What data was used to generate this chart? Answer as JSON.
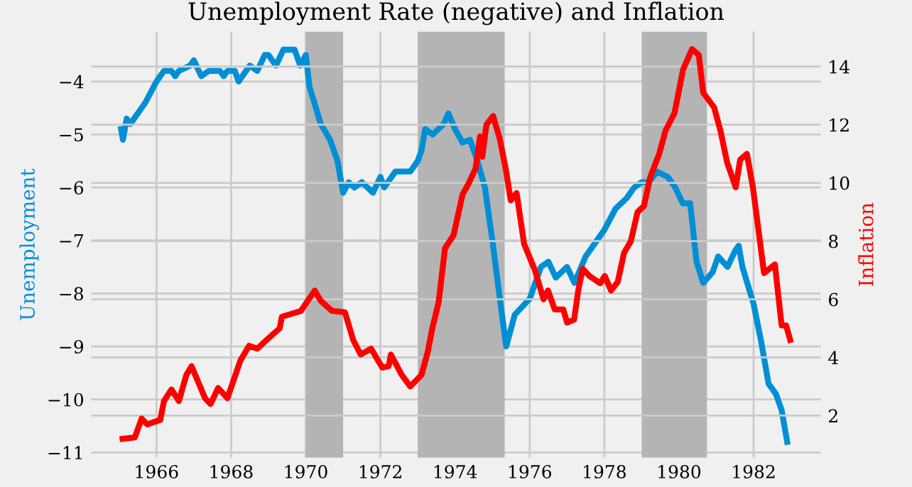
{
  "chart_data": {
    "type": "line",
    "title": "Unemployment Rate (negative) and Inflation",
    "ylabel": "Unemployment",
    "y2label": "Inflation",
    "xlim": [
      1964.25,
      1983.8
    ],
    "xticks": [
      1966,
      1968,
      1970,
      1972,
      1974,
      1976,
      1978,
      1980,
      1982
    ],
    "ylim": [
      -11.1,
      -3.06
    ],
    "yticks": [
      -11,
      -10,
      -9,
      -8,
      -7,
      -6,
      -5,
      -4
    ],
    "y2lim": [
      0.55,
      15.2
    ],
    "y2ticks": [
      2,
      4,
      6,
      8,
      10,
      12,
      14
    ],
    "grid": true,
    "bands": [
      {
        "axis": "x",
        "from": 1970.0,
        "to": 1971.0,
        "color": "#b4b4b4"
      },
      {
        "axis": "x",
        "from": 1973.0,
        "to": 1975.33,
        "color": "#b4b4b4"
      },
      {
        "axis": "x",
        "from": 1979.0,
        "to": 1980.75,
        "color": "#b4b4b4"
      }
    ],
    "series": [
      {
        "color": "#008fd5",
        "x": [
          1965.05,
          1965.1,
          1965.2,
          1965.3,
          1965.5,
          1965.7,
          1966.0,
          1966.2,
          1966.4,
          1966.5,
          1966.6,
          1966.9,
          1967.0,
          1967.2,
          1967.4,
          1967.7,
          1967.8,
          1967.9,
          1968.1,
          1968.2,
          1968.5,
          1968.7,
          1968.9,
          1969.0,
          1969.2,
          1969.4,
          1969.7,
          1969.85,
          1970.0,
          1970.1,
          1970.4,
          1970.65,
          1970.85,
          1971.0,
          1971.15,
          1971.3,
          1971.5,
          1971.8,
          1972.0,
          1972.1,
          1972.4,
          1972.8,
          1973.0,
          1973.1,
          1973.2,
          1973.4,
          1973.7,
          1973.82,
          1974.0,
          1974.2,
          1974.4,
          1974.6,
          1974.8,
          1975.0,
          1975.2,
          1975.37,
          1975.6,
          1976.0,
          1976.3,
          1976.5,
          1976.7,
          1977.0,
          1977.2,
          1977.5,
          1977.8,
          1978.0,
          1978.3,
          1978.6,
          1978.8,
          1979.0,
          1979.2,
          1979.41,
          1979.7,
          1979.9,
          1980.1,
          1980.3,
          1980.47,
          1980.65,
          1980.9,
          1981.05,
          1981.3,
          1981.5,
          1981.6,
          1981.7,
          1982.0,
          1982.2,
          1982.4,
          1982.6,
          1982.75,
          1982.9
        ],
        "values": [
          -4.9,
          -5.1,
          -4.7,
          -4.8,
          -4.6,
          -4.4,
          -4.0,
          -3.8,
          -3.8,
          -3.9,
          -3.8,
          -3.7,
          -3.6,
          -3.9,
          -3.8,
          -3.8,
          -3.9,
          -3.8,
          -3.8,
          -4.0,
          -3.7,
          -3.8,
          -3.5,
          -3.5,
          -3.7,
          -3.4,
          -3.4,
          -3.7,
          -3.5,
          -4.1,
          -4.8,
          -5.1,
          -5.5,
          -6.1,
          -5.9,
          -6.0,
          -5.9,
          -6.1,
          -5.8,
          -6.0,
          -5.7,
          -5.7,
          -5.5,
          -5.3,
          -4.9,
          -5.0,
          -4.8,
          -4.6,
          -4.9,
          -5.15,
          -5.1,
          -5.5,
          -6.0,
          -7.0,
          -8.1,
          -9.0,
          -8.4,
          -8.1,
          -7.5,
          -7.4,
          -7.7,
          -7.5,
          -7.8,
          -7.3,
          -7.0,
          -6.8,
          -6.4,
          -6.2,
          -6.0,
          -5.9,
          -5.9,
          -5.7,
          -5.8,
          -6.0,
          -6.3,
          -6.3,
          -7.4,
          -7.8,
          -7.6,
          -7.3,
          -7.5,
          -7.2,
          -7.1,
          -7.5,
          -8.2,
          -8.9,
          -9.7,
          -9.9,
          -10.2,
          -10.8
        ]
      },
      {
        "color": "#ff0000",
        "axis": "y2",
        "x": [
          1965.09,
          1965.42,
          1965.6,
          1965.75,
          1966.1,
          1966.2,
          1966.4,
          1966.6,
          1966.8,
          1966.94,
          1967.3,
          1967.45,
          1967.65,
          1967.9,
          1968.25,
          1968.48,
          1968.7,
          1968.95,
          1969.3,
          1969.36,
          1969.87,
          1970.24,
          1970.4,
          1970.7,
          1971.05,
          1971.27,
          1971.47,
          1971.75,
          1972.05,
          1972.22,
          1972.28,
          1972.57,
          1972.8,
          1973.1,
          1973.27,
          1973.39,
          1973.56,
          1973.73,
          1973.96,
          1974.2,
          1974.37,
          1974.55,
          1974.67,
          1974.73,
          1974.84,
          1975.02,
          1975.2,
          1975.37,
          1975.49,
          1975.65,
          1975.85,
          1976.14,
          1976.37,
          1976.49,
          1976.67,
          1976.9,
          1977.0,
          1977.19,
          1977.3,
          1977.42,
          1977.6,
          1977.89,
          1978.01,
          1978.18,
          1978.36,
          1978.53,
          1978.71,
          1978.89,
          1979.06,
          1979.23,
          1979.47,
          1979.64,
          1979.88,
          1980.11,
          1980.35,
          1980.53,
          1980.65,
          1980.94,
          1981.11,
          1981.29,
          1981.52,
          1981.64,
          1981.82,
          1981.98,
          1982.28,
          1982.57,
          1982.75,
          1982.87,
          1982.98
        ],
        "values": [
          1.2,
          1.25,
          1.9,
          1.7,
          1.85,
          2.5,
          2.9,
          2.5,
          3.4,
          3.7,
          2.6,
          2.4,
          2.95,
          2.6,
          3.9,
          4.4,
          4.3,
          4.6,
          5.0,
          5.4,
          5.6,
          6.3,
          5.95,
          5.6,
          5.55,
          4.6,
          4.1,
          4.3,
          3.65,
          3.7,
          4.1,
          3.4,
          3.0,
          3.4,
          4.2,
          5.0,
          5.9,
          7.75,
          8.2,
          9.6,
          10.0,
          10.5,
          11.6,
          10.9,
          12.0,
          12.3,
          11.5,
          10.4,
          9.4,
          9.65,
          7.9,
          7.0,
          6.0,
          6.3,
          5.65,
          5.65,
          5.2,
          5.3,
          6.3,
          7.05,
          6.8,
          6.55,
          6.8,
          6.3,
          6.6,
          7.6,
          8.0,
          9.0,
          9.2,
          10.2,
          11.0,
          11.8,
          12.4,
          13.9,
          14.6,
          14.4,
          13.1,
          12.6,
          11.8,
          10.7,
          9.85,
          10.8,
          11.0,
          9.85,
          6.9,
          7.2,
          5.1,
          5.1,
          4.6
        ]
      }
    ]
  }
}
